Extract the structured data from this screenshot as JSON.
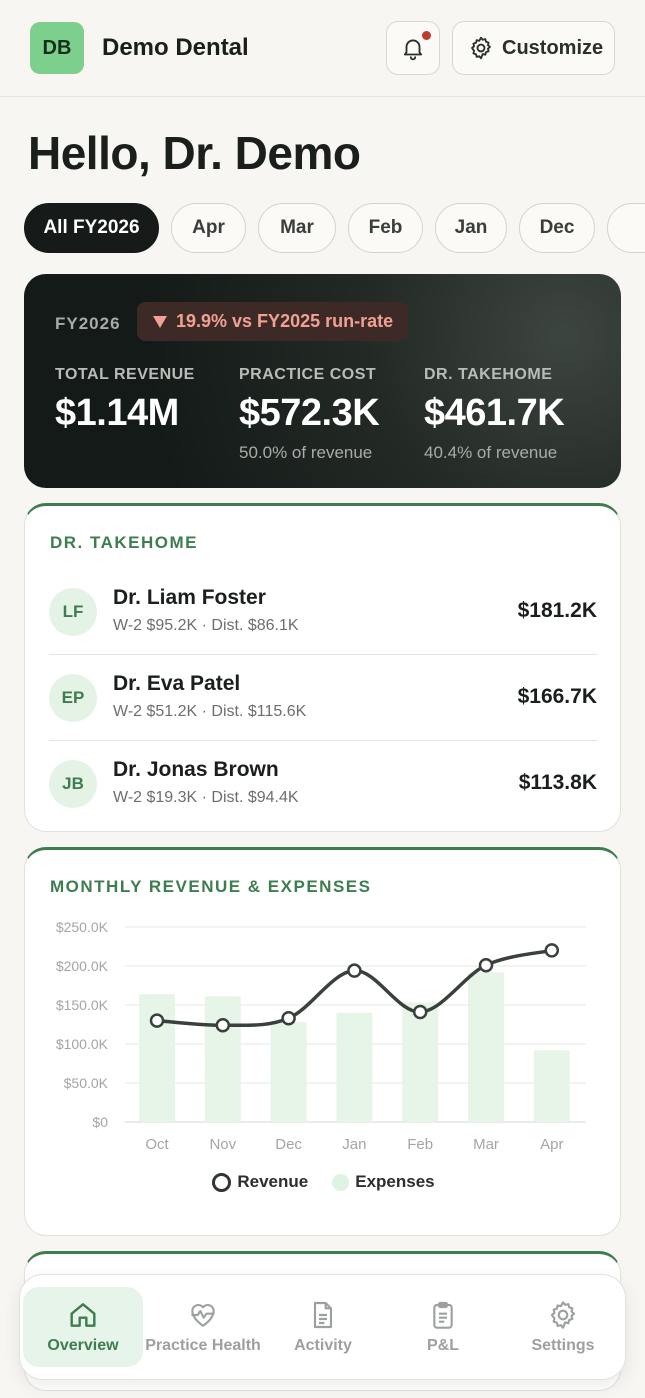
{
  "header": {
    "logo_initials": "DB",
    "practice_name": "Demo Dental",
    "customize_label": "Customize",
    "has_notification": true
  },
  "greeting": "Hello, Dr. Demo",
  "filters": [
    {
      "label": "All FY2026",
      "active": true
    },
    {
      "label": "Apr",
      "active": false
    },
    {
      "label": "Mar",
      "active": false
    },
    {
      "label": "Feb",
      "active": false
    },
    {
      "label": "Jan",
      "active": false
    },
    {
      "label": "Dec",
      "active": false
    }
  ],
  "summary": {
    "fiscal_year": "FY2026",
    "delta_text": "19.9% vs FY2025 run-rate",
    "delta_direction": "down",
    "metrics": [
      {
        "label": "TOTAL REVENUE",
        "value": "$1.14M",
        "sub": ""
      },
      {
        "label": "PRACTICE COST",
        "value": "$572.3K",
        "sub": "50.0% of revenue"
      },
      {
        "label": "DR. TAKEHOME",
        "value": "$461.7K",
        "sub": "40.4% of revenue"
      }
    ]
  },
  "takehome": {
    "title": "DR. TAKEHOME",
    "doctors": [
      {
        "initials": "LF",
        "name": "Dr. Liam Foster",
        "detail": "W-2 $95.2K · Dist. $86.1K",
        "amount": "$181.2K"
      },
      {
        "initials": "EP",
        "name": "Dr. Eva Patel",
        "detail": "W-2 $51.2K · Dist. $115.6K",
        "amount": "$166.7K"
      },
      {
        "initials": "JB",
        "name": "Dr. Jonas Brown",
        "detail": "W-2 $19.3K · Dist. $94.4K",
        "amount": "$113.8K"
      }
    ]
  },
  "chart_card": {
    "title": "MONTHLY REVENUE & EXPENSES"
  },
  "chart_data": {
    "type": "bar",
    "categories": [
      "Oct",
      "Nov",
      "Dec",
      "Jan",
      "Feb",
      "Mar",
      "Apr"
    ],
    "series": [
      {
        "name": "Revenue",
        "kind": "line",
        "values": [
          130,
          124,
          133,
          194,
          141,
          201,
          220
        ]
      },
      {
        "name": "Expenses",
        "kind": "bar",
        "values": [
          164,
          161,
          128,
          140,
          153,
          192,
          92
        ]
      }
    ],
    "y_ticks": [
      "$0",
      "$50.0K",
      "$100.0K",
      "$150.0K",
      "$200.0K",
      "$250.0K"
    ],
    "ylim": [
      0,
      250
    ],
    "units": "thousands of dollars",
    "legend": [
      "Revenue",
      "Expenses"
    ],
    "legend_position": "bottom",
    "grid": true,
    "colors": {
      "line": "#3a403c",
      "bar": "#e6f5e8"
    }
  },
  "nav": [
    {
      "label": "Overview",
      "icon": "home-icon",
      "active": true
    },
    {
      "label": "Practice Health",
      "icon": "heart-pulse-icon",
      "active": false
    },
    {
      "label": "Activity",
      "icon": "document-icon",
      "active": false
    },
    {
      "label": "P&L",
      "icon": "clipboard-icon",
      "active": false
    },
    {
      "label": "Settings",
      "icon": "gear-icon",
      "active": false
    }
  ],
  "colors": {
    "accent": "#3d7d4f",
    "logo_bg": "#7ccf8c",
    "negative": "#f0a194",
    "notification_dot": "#c0392b"
  }
}
